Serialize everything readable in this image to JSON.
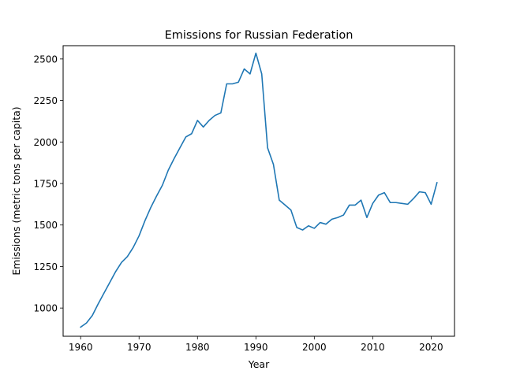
{
  "chart_data": {
    "type": "line",
    "title": "Emissions for Russian Federation",
    "xlabel": "Year",
    "ylabel": "Emissions (metric tons per capita)",
    "xlim": [
      1957,
      2024
    ],
    "ylim": [
      830,
      2580
    ],
    "xticks": [
      1960,
      1970,
      1980,
      1990,
      2000,
      2010,
      2020
    ],
    "yticks": [
      1000,
      1250,
      1500,
      1750,
      2000,
      2250,
      2500
    ],
    "grid": false,
    "series": [
      {
        "color": "#1f77b4",
        "x": [
          1960,
          1961,
          1962,
          1963,
          1964,
          1965,
          1966,
          1967,
          1968,
          1969,
          1970,
          1971,
          1972,
          1973,
          1974,
          1975,
          1976,
          1977,
          1978,
          1979,
          1980,
          1981,
          1982,
          1983,
          1984,
          1985,
          1986,
          1987,
          1988,
          1989,
          1990,
          1991,
          1992,
          1993,
          1994,
          1995,
          1996,
          1997,
          1998,
          1999,
          2000,
          2001,
          2002,
          2003,
          2004,
          2005,
          2006,
          2007,
          2008,
          2009,
          2010,
          2011,
          2012,
          2013,
          2014,
          2015,
          2016,
          2017,
          2018,
          2019,
          2020,
          2021
        ],
        "y": [
          885,
          910,
          955,
          1025,
          1090,
          1155,
          1220,
          1275,
          1310,
          1365,
          1435,
          1525,
          1605,
          1675,
          1740,
          1830,
          1900,
          1965,
          2030,
          2050,
          2130,
          2090,
          2130,
          2160,
          2175,
          2350,
          2350,
          2360,
          2440,
          2410,
          2535,
          2410,
          1965,
          1865,
          1650,
          1620,
          1590,
          1485,
          1470,
          1495,
          1480,
          1515,
          1505,
          1535,
          1545,
          1560,
          1620,
          1620,
          1650,
          1545,
          1630,
          1680,
          1695,
          1635,
          1635,
          1630,
          1625,
          1660,
          1700,
          1695,
          1625,
          1755
        ]
      }
    ]
  }
}
